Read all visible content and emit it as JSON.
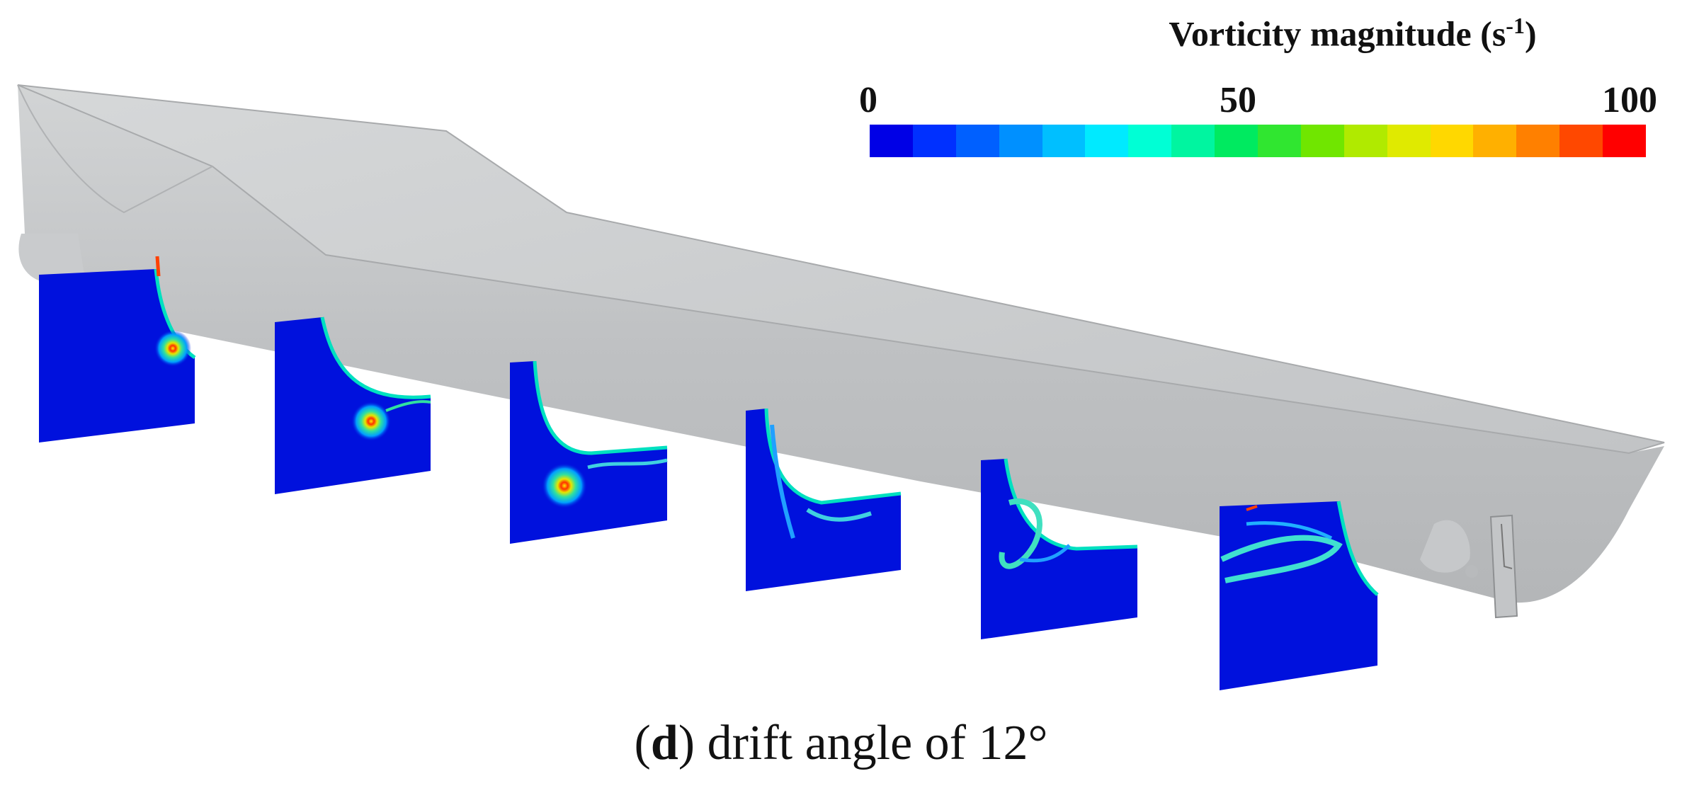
{
  "legend": {
    "title": "Vorticity magnitude (s",
    "title_sup": "-1",
    "title_close": ")",
    "ticks": [
      "0",
      "50",
      "100"
    ],
    "min": 0,
    "max": 100,
    "colors": [
      "#0000e6",
      "#0030ff",
      "#0060ff",
      "#0090ff",
      "#00bfff",
      "#00eaff",
      "#00ffd5",
      "#00f5a0",
      "#00ea60",
      "#30e630",
      "#70e600",
      "#b0ea00",
      "#e0ea00",
      "#ffd800",
      "#ffb000",
      "#ff8000",
      "#ff4800",
      "#ff0000"
    ]
  },
  "caption": {
    "label_open": "(",
    "label": "d",
    "label_close": ")",
    "text": " drift angle of 12°"
  },
  "colors": {
    "hull": "#c4c6c8",
    "hull_dark": "#a9abad",
    "deck": "#cacccd",
    "plane_background": "#0011dd"
  }
}
